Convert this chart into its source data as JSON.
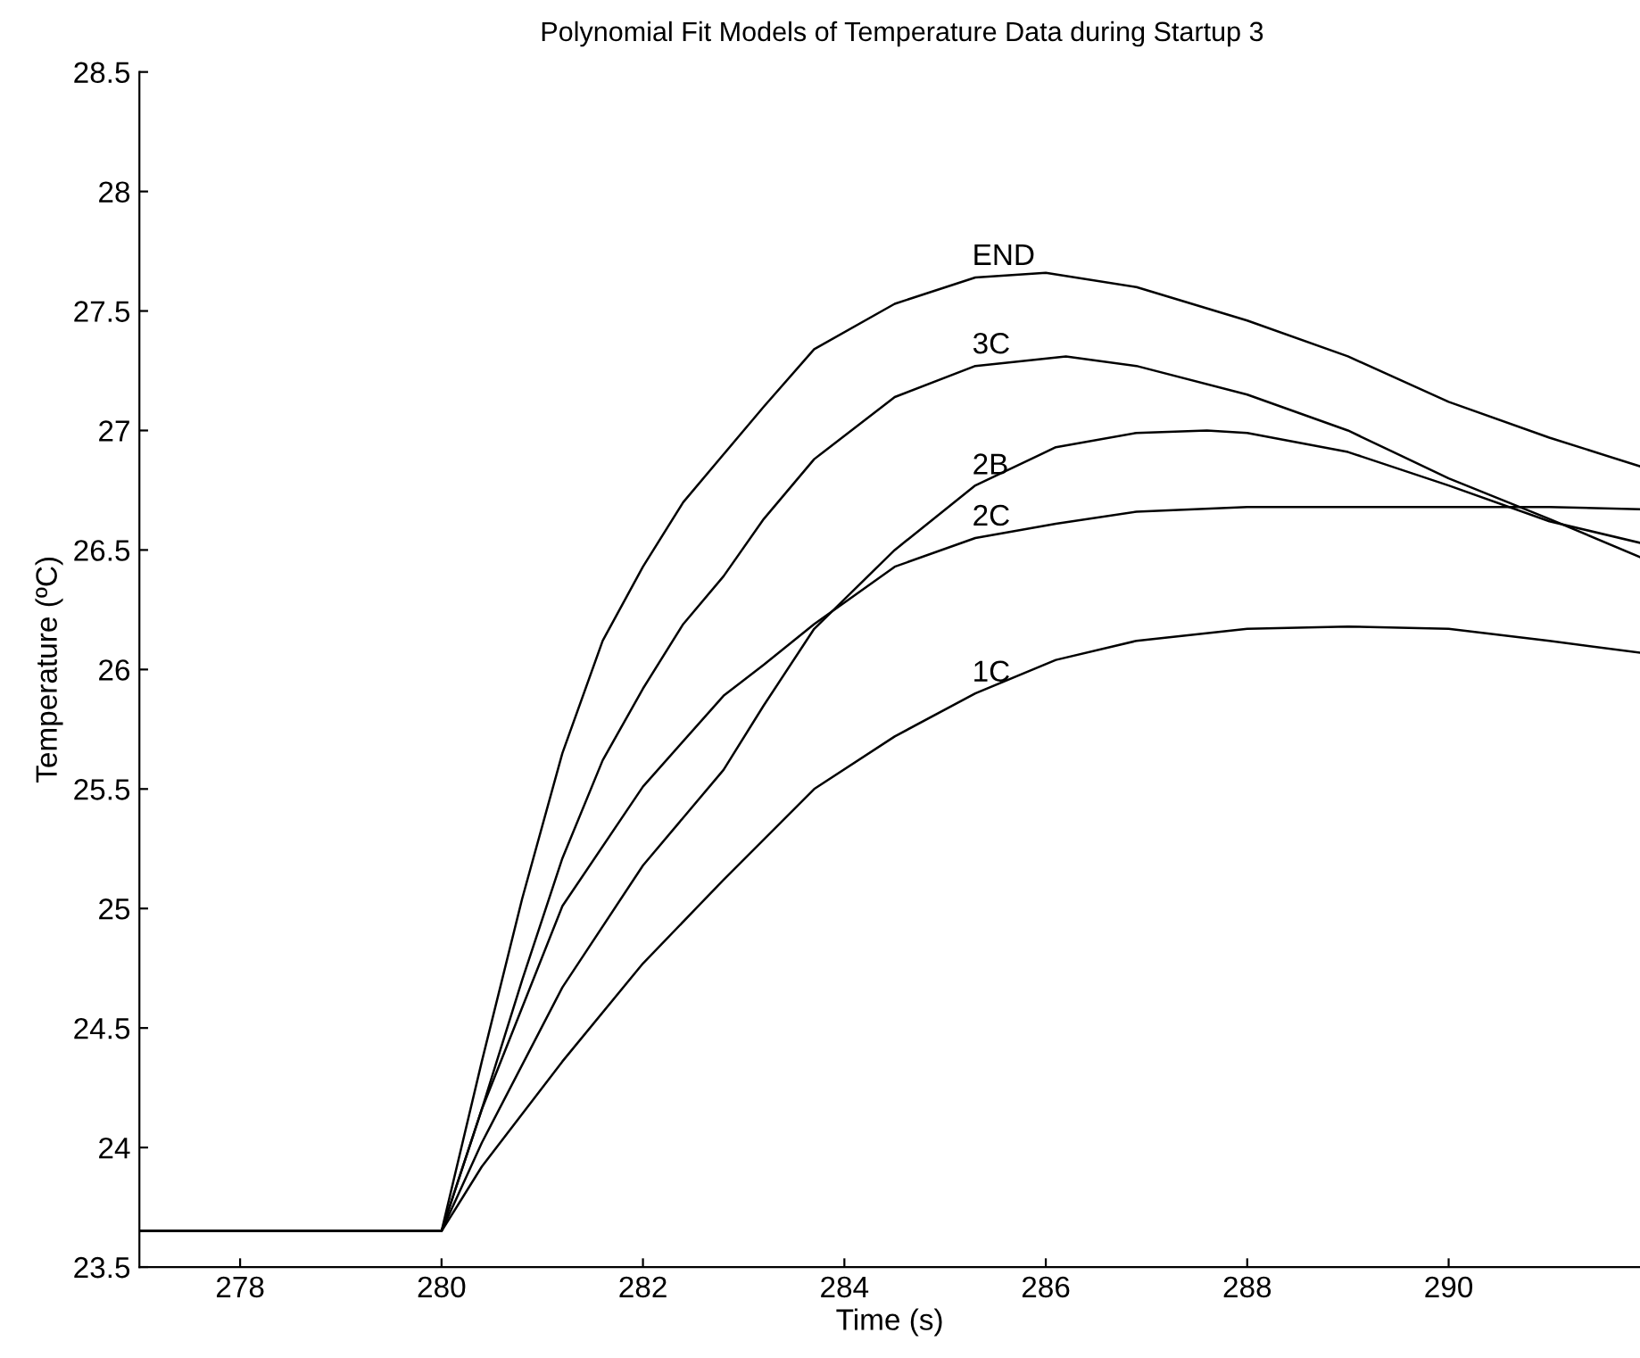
{
  "chart_data": {
    "type": "line",
    "title": "Polynomial Fit Models of Temperature Data during Startup 3",
    "xlabel": "Time (s)",
    "ylabel": "Temperature (ºC)",
    "xlim": [
      277,
      291.9
    ],
    "ylim": [
      23.5,
      28.5
    ],
    "xticks": [
      278,
      280,
      282,
      284,
      286,
      288,
      290
    ],
    "yticks": [
      23.5,
      24,
      24.5,
      25,
      25.5,
      26,
      26.5,
      27,
      27.5,
      28,
      28.5
    ],
    "grid": false,
    "marker": "none",
    "line_style": "solid",
    "series": [
      {
        "name": "END",
        "color": "#000000",
        "x": [
          277,
          280,
          280.4,
          280.8,
          281.2,
          281.6,
          282,
          282.4,
          282.8,
          283.2,
          283.7,
          284.5,
          285.3,
          286,
          286.9,
          288,
          289,
          290,
          291,
          291.9
        ],
        "values": [
          23.65,
          23.65,
          24.36,
          25.04,
          25.65,
          26.12,
          26.43,
          26.7,
          26.9,
          27.1,
          27.34,
          27.53,
          27.64,
          27.66,
          27.6,
          27.46,
          27.31,
          27.12,
          26.97,
          26.85
        ]
      },
      {
        "name": "3C",
        "color": "#000000",
        "x": [
          277,
          280,
          280.4,
          280.8,
          281.2,
          281.6,
          282,
          282.4,
          282.8,
          283.2,
          283.7,
          284.5,
          285.3,
          286.2,
          286.9,
          288,
          289,
          290,
          291,
          291.9
        ],
        "values": [
          23.65,
          23.65,
          24.16,
          24.7,
          25.21,
          25.62,
          25.92,
          26.19,
          26.39,
          26.63,
          26.88,
          27.14,
          27.27,
          27.31,
          27.27,
          27.15,
          27.0,
          26.8,
          26.63,
          26.47
        ]
      },
      {
        "name": "2B",
        "color": "#000000",
        "x": [
          277,
          280,
          280.4,
          281.2,
          282,
          282.8,
          283.2,
          283.7,
          284.5,
          285.3,
          286.1,
          286.9,
          287.6,
          288,
          289,
          290,
          291,
          291.9
        ],
        "values": [
          23.65,
          23.65,
          24.02,
          24.67,
          25.18,
          25.58,
          25.85,
          26.17,
          26.5,
          26.77,
          26.93,
          26.99,
          27.0,
          26.99,
          26.91,
          26.77,
          26.62,
          26.53
        ]
      },
      {
        "name": "2C",
        "color": "#000000",
        "x": [
          277,
          280,
          280.4,
          281.2,
          282,
          282.8,
          283.2,
          283.7,
          284.5,
          285.3,
          286.1,
          286.9,
          288,
          289.3,
          291,
          291.9
        ],
        "values": [
          23.65,
          23.65,
          24.16,
          25.01,
          25.51,
          25.89,
          26.02,
          26.19,
          26.43,
          26.55,
          26.61,
          26.66,
          26.68,
          26.68,
          26.68,
          26.67
        ]
      },
      {
        "name": "1C",
        "color": "#000000",
        "x": [
          277,
          280,
          280.4,
          281.2,
          282,
          282.8,
          283.7,
          284.5,
          285.3,
          286.1,
          286.9,
          288,
          289,
          290,
          291,
          291.9
        ],
        "values": [
          23.65,
          23.65,
          23.92,
          24.36,
          24.77,
          25.12,
          25.5,
          25.72,
          25.9,
          26.04,
          26.12,
          26.17,
          26.18,
          26.17,
          26.12,
          26.07
        ]
      }
    ]
  }
}
